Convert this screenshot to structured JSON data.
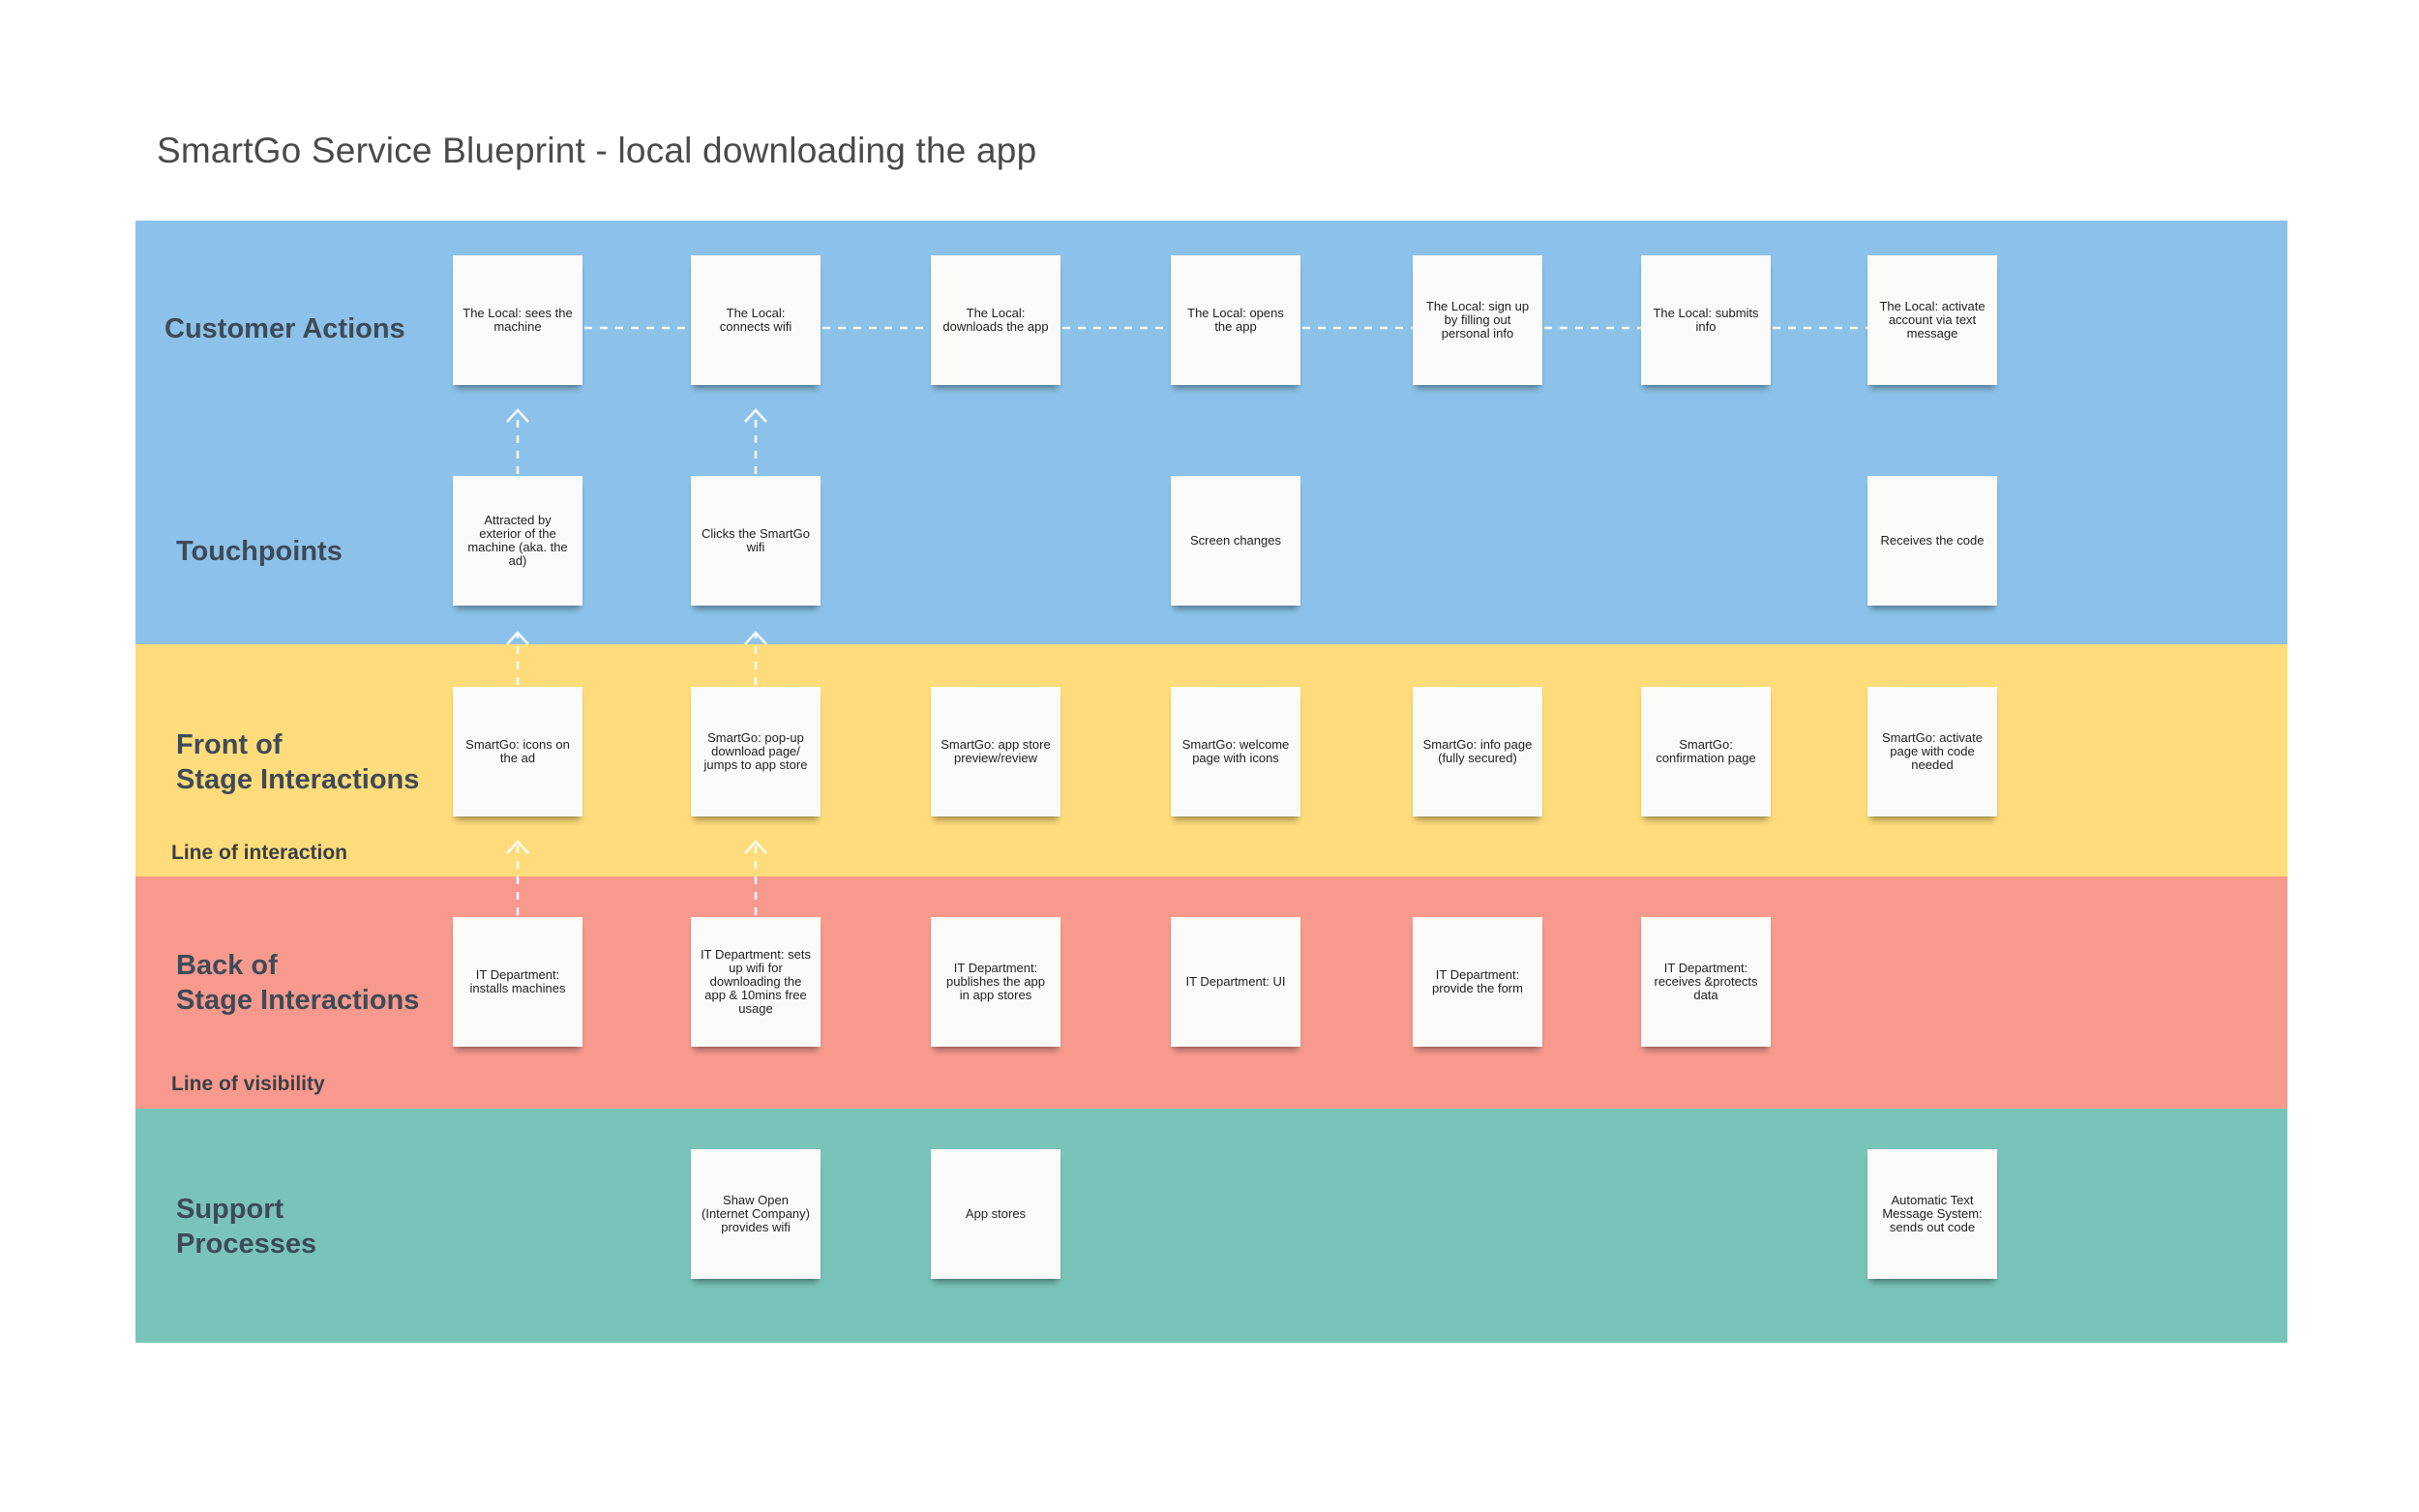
{
  "title": "SmartGo Service Blueprint - local downloading the app",
  "colors": {
    "customer": "#8cc2e9",
    "front": "#fedc7b",
    "back": "#f79a8d",
    "support": "#79c4b8"
  },
  "lanes": {
    "customer_actions": "Customer Actions",
    "touchpoints": "Touchpoints",
    "front_stage": [
      "Front of",
      "Stage Interactions"
    ],
    "back_stage": [
      "Back of",
      "Stage Interactions"
    ],
    "support": [
      "Support",
      "Processes"
    ]
  },
  "lines": {
    "interaction": "Line of interaction",
    "visibility": "Line of visibility"
  },
  "notes": {
    "customer": [
      "The Local: sees the machine",
      "The Local: connects wifi",
      "The Local: downloads the app",
      "The Local: opens the app",
      "The Local: sign up by filling out personal info",
      "The Local: submits info",
      "The Local: activate account via text message"
    ],
    "touchpoints": [
      "Attracted by exterior of the machine (aka. the ad)",
      "Clicks the SmartGo wifi",
      "Screen changes",
      "Receives the code"
    ],
    "front": [
      "SmartGo: icons on the ad",
      "SmartGo: pop-up download page/ jumps to app store",
      "SmartGo: app store preview/review",
      "SmartGo: welcome page with icons",
      "SmartGo: info page (fully secured)",
      "SmartGo: confirmation page",
      "SmartGo: activate page with code needed"
    ],
    "back": [
      "IT Department: installs machines",
      "IT Department: sets up wifi for downloading the app & 10mins free usage",
      "IT Department: publishes the app in app stores",
      "IT Department: UI",
      "IT Department: provide the form",
      "IT Department: receives &protects data"
    ],
    "support": [
      "Shaw Open (Internet Company) provides wifi",
      "App stores",
      "Automatic Text Message System: sends out code"
    ]
  }
}
